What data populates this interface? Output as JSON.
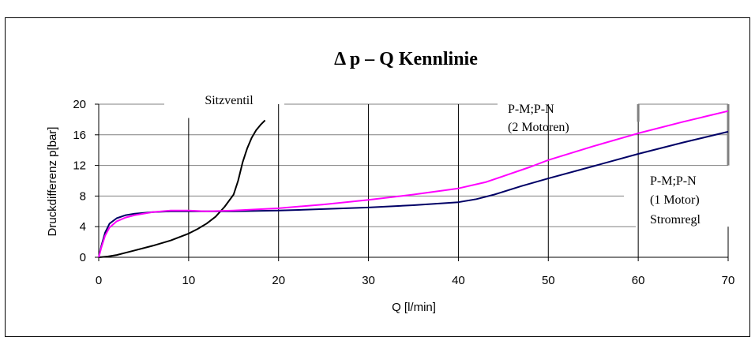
{
  "chart_data": {
    "type": "line",
    "title": "Δ p – Q  Kennlinie",
    "xlabel": "Q [l/min]",
    "ylabel": "Druckdifferenz p[bar]",
    "xlim": [
      0,
      70
    ],
    "ylim": [
      0,
      20
    ],
    "x_ticks": [
      "0",
      "10",
      "20",
      "30",
      "40",
      "50",
      "60",
      "70"
    ],
    "y_ticks": [
      "0",
      "4",
      "8",
      "12",
      "16",
      "20"
    ],
    "grid": "partial",
    "annotations": {
      "sitzventil": "Sitzventil",
      "two_motors_1": "P-M;P-N",
      "two_motors_2": "(2 Motoren)",
      "one_motor_1": "P-M;P-N",
      "one_motor_2": "(1 Motor)",
      "one_motor_3": "Stromregl"
    },
    "series": [
      {
        "color": "#000000",
        "points": [
          [
            0,
            0
          ],
          [
            1,
            0.1
          ],
          [
            2,
            0.3
          ],
          [
            3,
            0.6
          ],
          [
            4,
            0.9
          ],
          [
            6,
            1.5
          ],
          [
            8,
            2.2
          ],
          [
            10,
            3.1
          ],
          [
            11,
            3.7
          ],
          [
            12,
            4.4
          ],
          [
            13,
            5.3
          ],
          [
            14,
            6.6
          ],
          [
            15,
            8.2
          ],
          [
            15.5,
            10.0
          ],
          [
            16,
            12.4
          ],
          [
            16.5,
            14.2
          ],
          [
            17,
            15.6
          ],
          [
            17.5,
            16.6
          ],
          [
            18,
            17.3
          ],
          [
            18.5,
            17.9
          ]
        ]
      },
      {
        "color": "#000066",
        "points": [
          [
            0,
            0
          ],
          [
            0.3,
            1.5
          ],
          [
            0.7,
            3.2
          ],
          [
            1.2,
            4.4
          ],
          [
            2,
            5.1
          ],
          [
            3,
            5.5
          ],
          [
            4,
            5.7
          ],
          [
            6,
            5.9
          ],
          [
            8,
            6.0
          ],
          [
            10,
            6.0
          ],
          [
            15,
            6.0
          ],
          [
            20,
            6.1
          ],
          [
            25,
            6.3
          ],
          [
            30,
            6.5
          ],
          [
            35,
            6.8
          ],
          [
            40,
            7.2
          ],
          [
            42,
            7.6
          ],
          [
            44,
            8.2
          ],
          [
            47,
            9.3
          ],
          [
            50,
            10.3
          ],
          [
            55,
            11.9
          ],
          [
            60,
            13.5
          ],
          [
            65,
            15.0
          ],
          [
            70,
            16.4
          ]
        ]
      },
      {
        "color": "#ff00ff",
        "points": [
          [
            0,
            0
          ],
          [
            0.3,
            1.3
          ],
          [
            0.7,
            2.8
          ],
          [
            1.2,
            3.9
          ],
          [
            2,
            4.7
          ],
          [
            3,
            5.2
          ],
          [
            4,
            5.5
          ],
          [
            6,
            5.9
          ],
          [
            8,
            6.1
          ],
          [
            10,
            6.1
          ],
          [
            12,
            6.0
          ],
          [
            15,
            6.1
          ],
          [
            20,
            6.4
          ],
          [
            25,
            6.9
          ],
          [
            30,
            7.5
          ],
          [
            35,
            8.2
          ],
          [
            40,
            9.0
          ],
          [
            43,
            9.8
          ],
          [
            45,
            10.6
          ],
          [
            48,
            11.8
          ],
          [
            50,
            12.7
          ],
          [
            55,
            14.5
          ],
          [
            60,
            16.2
          ],
          [
            65,
            17.7
          ],
          [
            70,
            19.1
          ]
        ]
      }
    ]
  }
}
